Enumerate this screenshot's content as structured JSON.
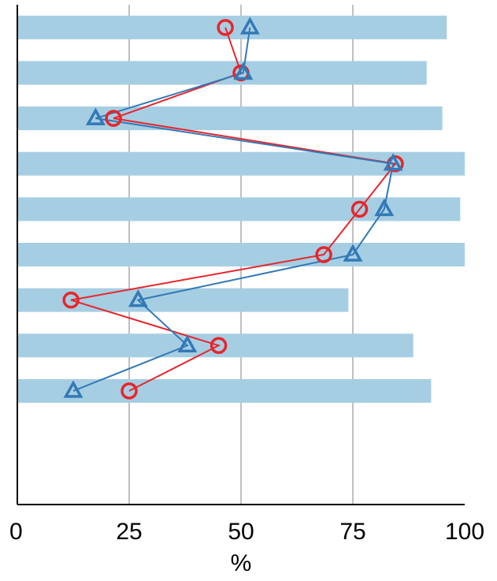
{
  "chart_data": {
    "type": "bar",
    "orientation": "horizontal",
    "xlabel": "%",
    "ylabel": "",
    "xlim": [
      0,
      100
    ],
    "xticks": [
      "0",
      "25",
      "50",
      "75",
      "100"
    ],
    "grid": true,
    "legend": "none",
    "rows": 11,
    "bars": {
      "color": "#a6cee3",
      "values": [
        96,
        91.5,
        95,
        100,
        99,
        100,
        74,
        88.5,
        92.5
      ]
    },
    "series": [
      {
        "marker": "circle",
        "color": "#e8252b",
        "values": [
          46.5,
          50,
          21.5,
          84.5,
          76.5,
          68.5,
          12,
          45,
          25
        ]
      },
      {
        "marker": "triangle",
        "color": "#3479b6",
        "values": [
          52,
          50.5,
          17.5,
          84,
          82,
          75,
          27,
          38,
          12.5
        ]
      }
    ]
  }
}
